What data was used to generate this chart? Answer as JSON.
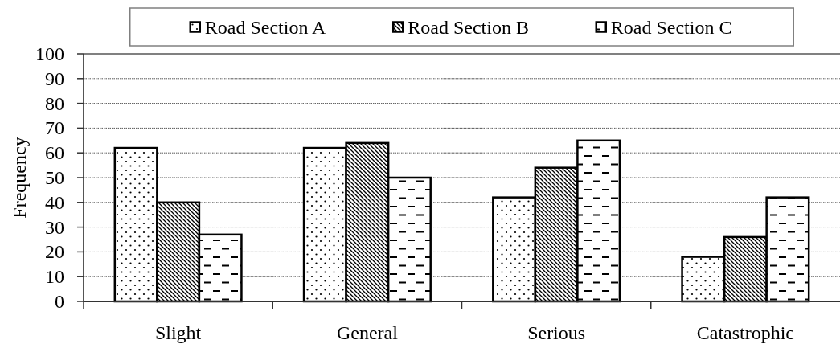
{
  "chart_data": {
    "type": "bar",
    "ylabel": "Frequency",
    "categories": [
      "Slight",
      "General",
      "Serious",
      "Catastrophic"
    ],
    "series": [
      {
        "name": "Road Section A",
        "color": "#000000",
        "values": [
          62,
          62,
          42,
          18
        ]
      },
      {
        "name": "Road Section B",
        "color": "#000000",
        "values": [
          40,
          64,
          54,
          26
        ]
      },
      {
        "name": "Road Section C",
        "color": "#000000",
        "values": [
          27,
          50,
          65,
          42
        ]
      }
    ],
    "ylim": [
      0,
      100
    ],
    "yticks": [
      0,
      10,
      20,
      30,
      40,
      50,
      60,
      70,
      80,
      90,
      100
    ],
    "grid": "y",
    "legend": "top"
  }
}
